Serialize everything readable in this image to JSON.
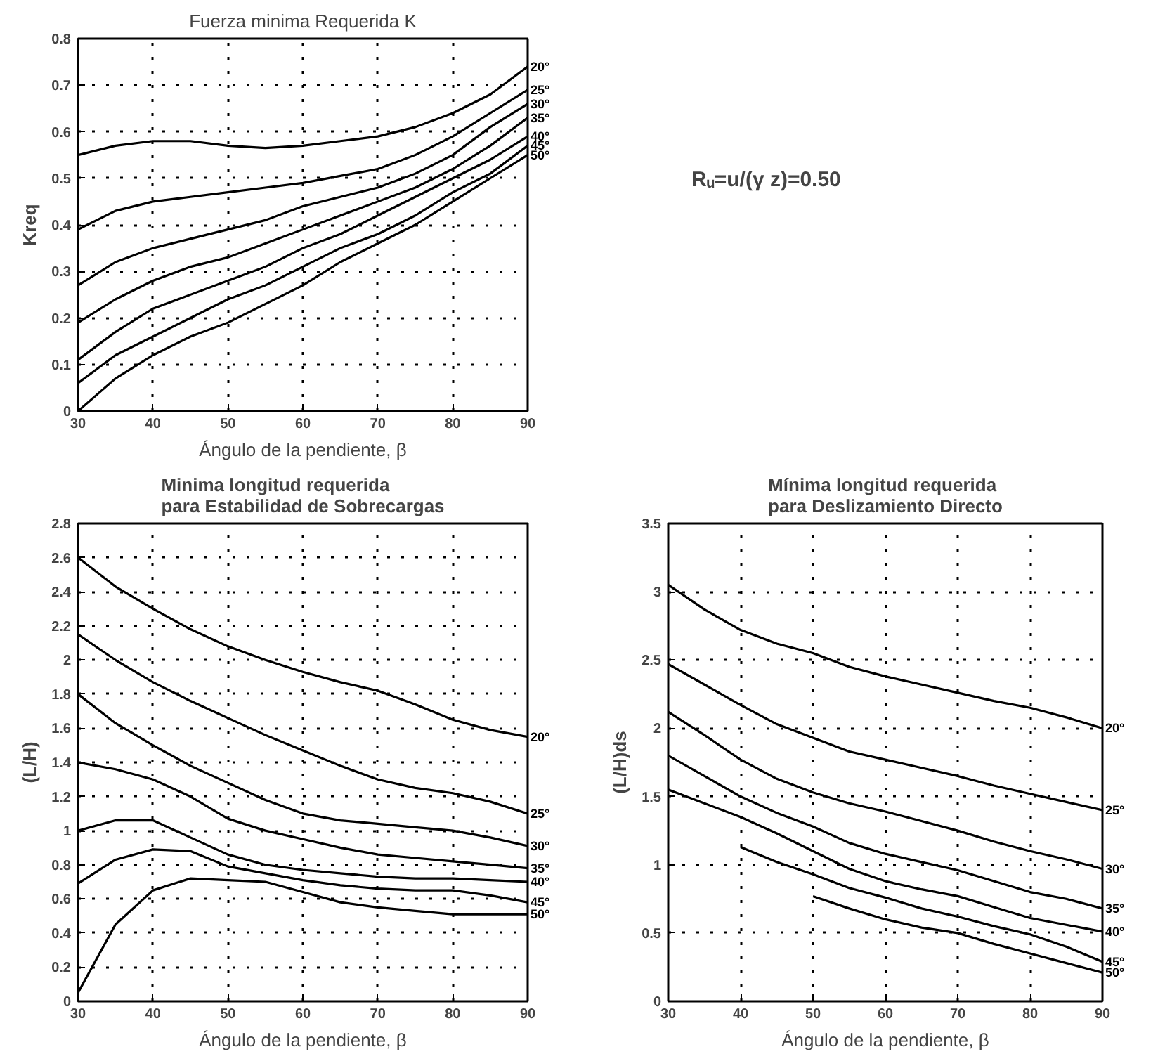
{
  "chart_data": [
    {
      "type": "line",
      "title": "Fuerza minima Requerida K",
      "xlabel": "Ángulo de la pendiente, β",
      "ylabel": "Kreq",
      "x": [
        30,
        35,
        40,
        45,
        50,
        55,
        60,
        65,
        70,
        75,
        80,
        85,
        90
      ],
      "xlim": [
        30,
        90
      ],
      "xticks": [
        30,
        40,
        50,
        60,
        70,
        80,
        90
      ],
      "ylim": [
        0,
        0.8
      ],
      "yticks": [
        0,
        0.1,
        0.2,
        0.3,
        0.4,
        0.5,
        0.6,
        0.7,
        0.8
      ],
      "grid": true,
      "line_style": "solid",
      "marker": "none",
      "series": [
        {
          "name": "20°",
          "color": "#000000",
          "values": [
            0.55,
            0.57,
            0.58,
            0.58,
            0.57,
            0.565,
            0.57,
            0.58,
            0.59,
            0.61,
            0.64,
            0.68,
            0.74
          ]
        },
        {
          "name": "25°",
          "color": "#000000",
          "values": [
            0.39,
            0.43,
            0.45,
            0.46,
            0.47,
            0.48,
            0.49,
            0.505,
            0.52,
            0.55,
            0.59,
            0.64,
            0.69
          ]
        },
        {
          "name": "30°",
          "color": "#000000",
          "values": [
            0.27,
            0.32,
            0.35,
            0.37,
            0.39,
            0.41,
            0.44,
            0.46,
            0.48,
            0.51,
            0.55,
            0.61,
            0.66
          ]
        },
        {
          "name": "35°",
          "color": "#000000",
          "values": [
            0.19,
            0.24,
            0.28,
            0.31,
            0.33,
            0.36,
            0.39,
            0.42,
            0.45,
            0.48,
            0.52,
            0.57,
            0.63
          ]
        },
        {
          "name": "40°",
          "color": "#000000",
          "values": [
            0.11,
            0.17,
            0.22,
            0.25,
            0.28,
            0.31,
            0.35,
            0.38,
            0.42,
            0.46,
            0.5,
            0.54,
            0.59
          ]
        },
        {
          "name": "45°",
          "color": "#000000",
          "values": [
            0.06,
            0.12,
            0.16,
            0.2,
            0.24,
            0.27,
            0.31,
            0.35,
            0.38,
            0.42,
            0.47,
            0.51,
            0.57
          ]
        },
        {
          "name": "50°",
          "color": "#000000",
          "values": [
            0.0,
            0.07,
            0.12,
            0.16,
            0.19,
            0.23,
            0.27,
            0.32,
            0.36,
            0.4,
            0.45,
            0.5,
            0.55
          ]
        }
      ]
    },
    {
      "type": "other",
      "annotations": [
        "Rᵤ=u/(γ z)=0.50"
      ]
    },
    {
      "type": "line",
      "title": "Minima longitud requerida\npara Estabilidad de Sobrecargas",
      "xlabel": "Ángulo de la pendiente, β",
      "ylabel": "(L/H)",
      "x": [
        30,
        35,
        40,
        45,
        50,
        55,
        60,
        65,
        70,
        75,
        80,
        85,
        90
      ],
      "xlim": [
        30,
        90
      ],
      "xticks": [
        30,
        40,
        50,
        60,
        70,
        80,
        90
      ],
      "ylim": [
        0,
        2.8
      ],
      "yticks": [
        0,
        0.2,
        0.4,
        0.6,
        0.8,
        1,
        1.2,
        1.4,
        1.6,
        1.8,
        2,
        2.2,
        2.4,
        2.6,
        2.8
      ],
      "grid": true,
      "line_style": "solid",
      "marker": "none",
      "series": [
        {
          "name": "20°",
          "color": "#000000",
          "values": [
            2.6,
            2.43,
            2.3,
            2.18,
            2.08,
            2.0,
            1.93,
            1.87,
            1.82,
            1.74,
            1.65,
            1.59,
            1.55
          ]
        },
        {
          "name": "25°",
          "color": "#000000",
          "values": [
            2.15,
            2.0,
            1.87,
            1.76,
            1.66,
            1.56,
            1.47,
            1.38,
            1.3,
            1.25,
            1.22,
            1.17,
            1.1
          ]
        },
        {
          "name": "30°",
          "color": "#000000",
          "values": [
            1.8,
            1.63,
            1.5,
            1.38,
            1.28,
            1.18,
            1.1,
            1.06,
            1.04,
            1.02,
            1.0,
            0.96,
            0.91
          ]
        },
        {
          "name": "35°",
          "color": "#000000",
          "values": [
            1.4,
            1.36,
            1.3,
            1.2,
            1.07,
            1.0,
            0.95,
            0.9,
            0.86,
            0.84,
            0.82,
            0.8,
            0.78
          ]
        },
        {
          "name": "40°",
          "color": "#000000",
          "values": [
            1.0,
            1.06,
            1.06,
            0.96,
            0.86,
            0.8,
            0.77,
            0.75,
            0.73,
            0.72,
            0.72,
            0.71,
            0.7
          ]
        },
        {
          "name": "45°",
          "color": "#000000",
          "values": [
            0.69,
            0.83,
            0.89,
            0.88,
            0.79,
            0.75,
            0.71,
            0.68,
            0.66,
            0.65,
            0.65,
            0.62,
            0.58
          ]
        },
        {
          "name": "50°",
          "color": "#000000",
          "values": [
            0.05,
            0.45,
            0.65,
            0.72,
            0.71,
            0.7,
            0.64,
            0.58,
            0.55,
            0.53,
            0.51,
            0.51,
            0.51
          ]
        }
      ]
    },
    {
      "type": "line",
      "title": "Mínima longitud requerida\npara Deslizamiento Directo",
      "xlabel": "Ángulo de la pendiente, β",
      "ylabel": "(L/H)ds",
      "x": [
        30,
        35,
        40,
        45,
        50,
        55,
        60,
        65,
        70,
        75,
        80,
        85,
        90
      ],
      "xlim": [
        30,
        90
      ],
      "xticks": [
        30,
        40,
        50,
        60,
        70,
        80,
        90
      ],
      "ylim": [
        0,
        3.5
      ],
      "yticks": [
        0,
        0.5,
        1,
        1.5,
        2,
        2.5,
        3,
        3.5
      ],
      "grid": true,
      "line_style": "solid",
      "marker": "none",
      "series": [
        {
          "name": "20°",
          "color": "#000000",
          "values": [
            3.05,
            2.87,
            2.72,
            2.62,
            2.55,
            2.45,
            2.38,
            2.32,
            2.26,
            2.2,
            2.15,
            2.08,
            2.0
          ]
        },
        {
          "name": "25°",
          "color": "#000000",
          "values": [
            2.47,
            2.32,
            2.17,
            2.03,
            1.93,
            1.83,
            1.77,
            1.71,
            1.65,
            1.58,
            1.52,
            1.46,
            1.4
          ]
        },
        {
          "name": "30°",
          "color": "#000000",
          "values": [
            2.12,
            1.95,
            1.77,
            1.63,
            1.53,
            1.45,
            1.39,
            1.32,
            1.25,
            1.17,
            1.1,
            1.04,
            0.97
          ]
        },
        {
          "name": "35°",
          "color": "#000000",
          "values": [
            1.8,
            1.65,
            1.5,
            1.38,
            1.28,
            1.16,
            1.08,
            1.02,
            0.96,
            0.88,
            0.8,
            0.75,
            0.68
          ]
        },
        {
          "name": "40°",
          "color": "#000000",
          "values": [
            1.55,
            1.45,
            1.35,
            1.23,
            1.1,
            0.97,
            0.88,
            0.82,
            0.77,
            0.69,
            0.61,
            0.56,
            0.51
          ]
        },
        {
          "name": "45°",
          "color": "#000000",
          "values": [
            null,
            null,
            1.13,
            1.02,
            0.93,
            0.83,
            0.76,
            0.68,
            0.62,
            0.55,
            0.49,
            0.4,
            0.29
          ]
        },
        {
          "name": "50°",
          "color": "#000000",
          "values": [
            null,
            null,
            null,
            null,
            0.77,
            0.68,
            0.6,
            0.54,
            0.5,
            0.42,
            0.35,
            0.28,
            0.21
          ]
        }
      ]
    }
  ]
}
